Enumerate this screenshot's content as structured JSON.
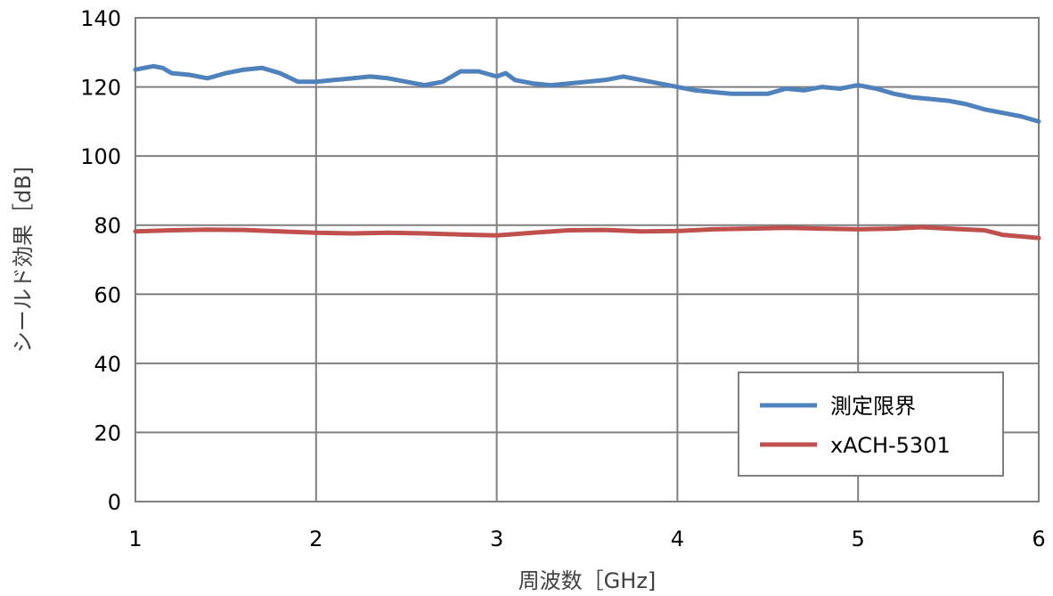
{
  "chart_data": {
    "type": "line",
    "title": "",
    "xlabel": "周波数［GHz]",
    "ylabel": "シールド効果［dB]",
    "xlim": [
      1,
      6
    ],
    "ylim": [
      0,
      140
    ],
    "xticks": [
      1,
      2,
      3,
      4,
      5,
      6
    ],
    "yticks": [
      0,
      20,
      40,
      60,
      80,
      100,
      120,
      140
    ],
    "xtick_labels": [
      "1",
      "2",
      "3",
      "4",
      "5",
      "6"
    ],
    "ytick_labels": [
      "0",
      "20",
      "40",
      "60",
      "80",
      "100",
      "120",
      "140"
    ],
    "grid": true,
    "legend_position": "bottom-right",
    "series": [
      {
        "name": "測定限界",
        "color": "#4f81bd",
        "points": [
          [
            1.0,
            125
          ],
          [
            1.05,
            125.5
          ],
          [
            1.1,
            126
          ],
          [
            1.15,
            125.5
          ],
          [
            1.2,
            124
          ],
          [
            1.3,
            123.5
          ],
          [
            1.4,
            122.5
          ],
          [
            1.5,
            124
          ],
          [
            1.6,
            125
          ],
          [
            1.7,
            125.5
          ],
          [
            1.8,
            124
          ],
          [
            1.9,
            121.5
          ],
          [
            2.0,
            121.5
          ],
          [
            2.1,
            122
          ],
          [
            2.2,
            122.5
          ],
          [
            2.3,
            123
          ],
          [
            2.4,
            122.5
          ],
          [
            2.5,
            121.5
          ],
          [
            2.6,
            120.5
          ],
          [
            2.7,
            121.5
          ],
          [
            2.8,
            124.5
          ],
          [
            2.9,
            124.5
          ],
          [
            3.0,
            123
          ],
          [
            3.05,
            124
          ],
          [
            3.1,
            122
          ],
          [
            3.2,
            121
          ],
          [
            3.3,
            120.5
          ],
          [
            3.4,
            121
          ],
          [
            3.5,
            121.5
          ],
          [
            3.6,
            122
          ],
          [
            3.7,
            123
          ],
          [
            3.8,
            122
          ],
          [
            3.9,
            121
          ],
          [
            4.0,
            120
          ],
          [
            4.1,
            119
          ],
          [
            4.2,
            118.5
          ],
          [
            4.3,
            118
          ],
          [
            4.4,
            118
          ],
          [
            4.5,
            118
          ],
          [
            4.6,
            119.5
          ],
          [
            4.7,
            119
          ],
          [
            4.8,
            120
          ],
          [
            4.9,
            119.5
          ],
          [
            5.0,
            120.5
          ],
          [
            5.1,
            119.5
          ],
          [
            5.2,
            118
          ],
          [
            5.3,
            117
          ],
          [
            5.4,
            116.5
          ],
          [
            5.5,
            116
          ],
          [
            5.6,
            115
          ],
          [
            5.7,
            113.5
          ],
          [
            5.8,
            112.5
          ],
          [
            5.9,
            111.5
          ],
          [
            6.0,
            110
          ]
        ]
      },
      {
        "name": "xACH-5301",
        "color": "#c0504d",
        "points": [
          [
            1.0,
            78.2
          ],
          [
            1.2,
            78.5
          ],
          [
            1.4,
            78.7
          ],
          [
            1.6,
            78.6
          ],
          [
            1.8,
            78.2
          ],
          [
            2.0,
            77.8
          ],
          [
            2.2,
            77.6
          ],
          [
            2.4,
            77.8
          ],
          [
            2.6,
            77.6
          ],
          [
            2.8,
            77.3
          ],
          [
            3.0,
            77
          ],
          [
            3.2,
            77.8
          ],
          [
            3.4,
            78.5
          ],
          [
            3.6,
            78.6
          ],
          [
            3.8,
            78.2
          ],
          [
            4.0,
            78.3
          ],
          [
            4.2,
            78.8
          ],
          [
            4.4,
            79
          ],
          [
            4.6,
            79.2
          ],
          [
            4.8,
            79
          ],
          [
            5.0,
            78.8
          ],
          [
            5.2,
            79
          ],
          [
            5.35,
            79.4
          ],
          [
            5.5,
            79
          ],
          [
            5.7,
            78.5
          ],
          [
            5.8,
            77.2
          ],
          [
            6.0,
            76.3
          ]
        ]
      }
    ]
  }
}
